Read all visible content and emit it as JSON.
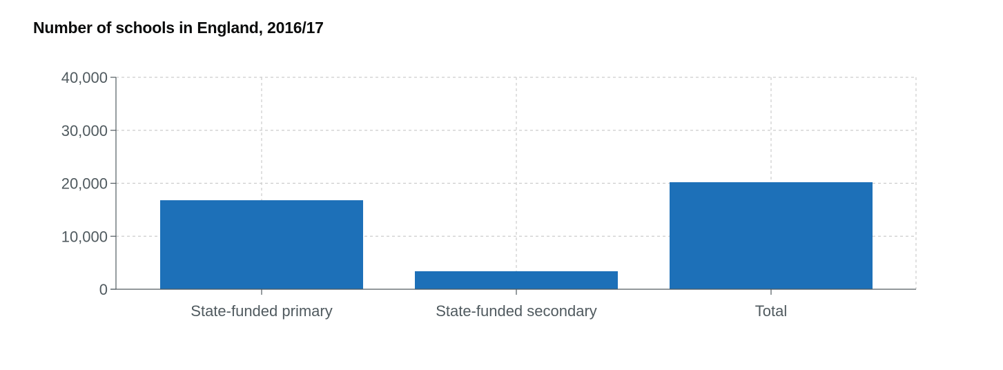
{
  "chart_data": {
    "type": "bar",
    "title": "Number of schools in England, 2016/17",
    "categories": [
      "State-funded primary",
      "State-funded secondary",
      "Total"
    ],
    "values": [
      16800,
      3400,
      20200
    ],
    "yticks": [
      "0",
      "10,000",
      "20,000",
      "30,000",
      "40,000"
    ],
    "ylim": [
      0,
      40000
    ],
    "ytick_values": [
      0,
      10000,
      20000,
      30000,
      40000
    ],
    "grid": true,
    "bar_color": "#1d70b8",
    "axis_color": "#505a5f",
    "grid_color": "#cccccc"
  }
}
